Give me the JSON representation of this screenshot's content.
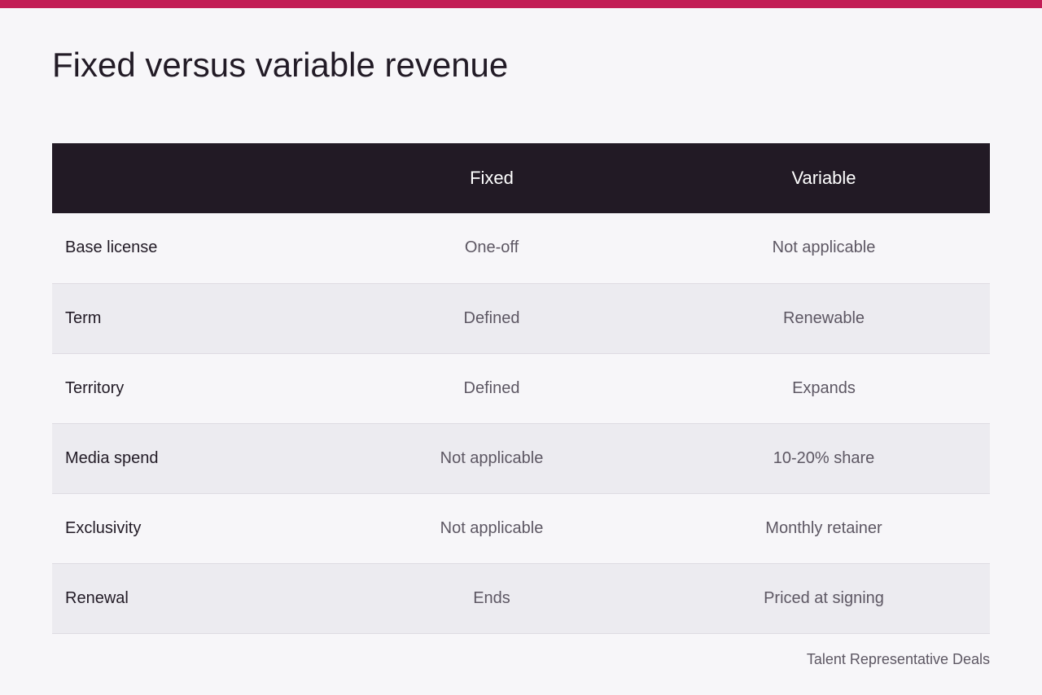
{
  "colors": {
    "accent_bar": "#c21d55",
    "header_background": "#221a25"
  },
  "page": {
    "title": "Fixed versus variable revenue"
  },
  "table": {
    "headers": [
      "",
      "Fixed",
      "Variable"
    ],
    "rows": [
      {
        "label": "Base license",
        "fixed": "One-off",
        "variable": "Not applicable"
      },
      {
        "label": "Term",
        "fixed": "Defined",
        "variable": "Renewable"
      },
      {
        "label": "Territory",
        "fixed": "Defined",
        "variable": "Expands"
      },
      {
        "label": "Media spend",
        "fixed": "Not applicable",
        "variable": "10-20% share"
      },
      {
        "label": "Exclusivity",
        "fixed": "Not applicable",
        "variable": "Monthly retainer"
      },
      {
        "label": "Renewal",
        "fixed": "Ends",
        "variable": "Priced at signing"
      }
    ]
  },
  "footer": {
    "source": "Talent Representative Deals"
  }
}
